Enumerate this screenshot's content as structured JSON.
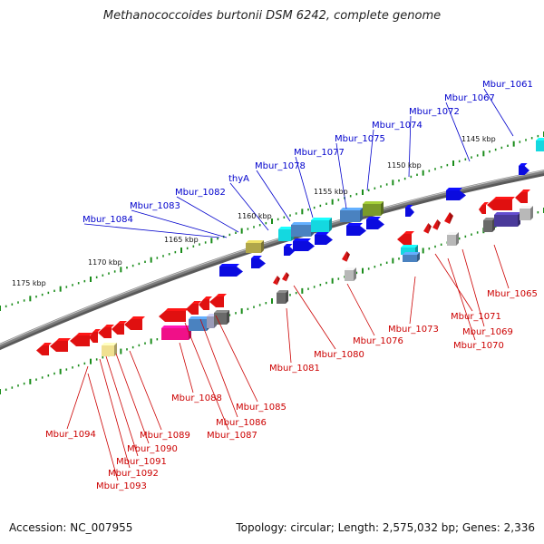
{
  "title": "Methanococcoides burtonii DSM 6242, complete genome",
  "footer": {
    "accession": "Accession: NC_007955",
    "summary": "Topology: circular; Length: 2,575,032 bp; Genes: 2,336"
  },
  "colors": {
    "forward_label": "#0000cc",
    "reverse_label": "#cc0000",
    "backbone": "#808080",
    "tick": "#1a8c1a"
  },
  "kbp_marks": [
    "1145 kbp",
    "1150 kbp",
    "1155 kbp",
    "1160 kbp",
    "1165 kbp",
    "1170 kbp",
    "1175 kbp"
  ],
  "forward_labels": [
    "Mbur_1061",
    "Mbur_1067",
    "Mbur_1072",
    "Mbur_1074",
    "Mbur_1075",
    "Mbur_1077",
    "Mbur_1078",
    "thyA",
    "Mbur_1082",
    "Mbur_1083",
    "Mbur_1084"
  ],
  "reverse_labels": [
    "Mbur_1065",
    "Mbur_1069",
    "Mbur_1070",
    "Mbur_1071",
    "Mbur_1073",
    "Mbur_1076",
    "Mbur_1080",
    "Mbur_1081",
    "Mbur_1085",
    "Mbur_1086",
    "Mbur_1087",
    "Mbur_1088",
    "Mbur_1089",
    "Mbur_1090",
    "Mbur_1091",
    "Mbur_1092",
    "Mbur_1093",
    "Mbur_1094"
  ]
}
